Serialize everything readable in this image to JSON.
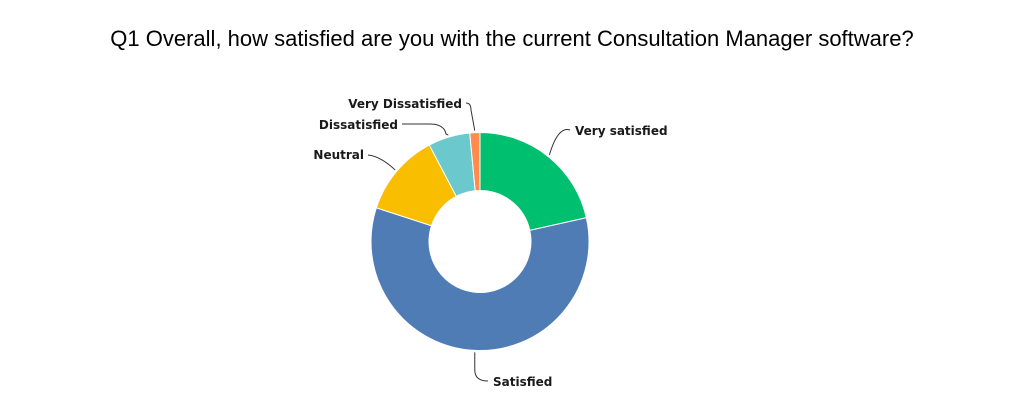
{
  "title": "Q1 Overall, how satisfied are you with the current Consultation Manager software?",
  "chart_data": {
    "type": "pie",
    "variant": "donut",
    "title": "Q1 Overall, how satisfied are you with the current Consultation Manager software?",
    "slices": [
      {
        "label": "Very satisfied",
        "value": 21.5,
        "color": "#00bf6f"
      },
      {
        "label": "Satisfied",
        "value": 58.5,
        "color": "#507cb6"
      },
      {
        "label": "Neutral",
        "value": 12.3,
        "color": "#f9be00"
      },
      {
        "label": "Dissatisfied",
        "value": 6.2,
        "color": "#6bc8cd"
      },
      {
        "label": "Very Dissatisfied",
        "value": 1.5,
        "color": "#ff8b4f"
      }
    ],
    "start_angle": "12 o'clock",
    "direction": "clockwise",
    "legend": "none (leader-line labels)"
  }
}
